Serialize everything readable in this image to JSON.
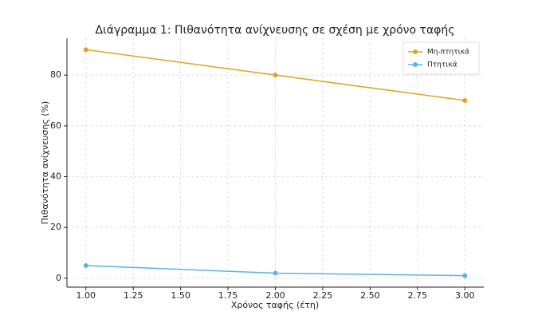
{
  "chart_data": {
    "type": "line",
    "title": "Διάγραμμα 1: Πιθανότητα ανίχνευσης σε σχέση με χρόνο ταφής",
    "xlabel": "Χρόνος ταφής (έτη)",
    "ylabel": "Πιθανότητα ανίχνευσης (%)",
    "x": [
      1,
      2,
      3
    ],
    "series": [
      {
        "name": "Μη-πτητικά",
        "color": "#daa520",
        "values": [
          90,
          80,
          70
        ]
      },
      {
        "name": "Πτητικά",
        "color": "#5ab4e0",
        "values": [
          5,
          2,
          1
        ]
      }
    ],
    "xlim": [
      0.9,
      3.1
    ],
    "xticks": [
      {
        "value": 1,
        "label": "1.00"
      },
      {
        "value": 1.25,
        "label": "1.25"
      },
      {
        "value": 1.5,
        "label": "1.50"
      },
      {
        "value": 1.75,
        "label": "1.75"
      },
      {
        "value": 2,
        "label": "2.00"
      },
      {
        "value": 2.25,
        "label": "2.25"
      },
      {
        "value": 2.5,
        "label": "2.50"
      },
      {
        "value": 2.75,
        "label": "2.75"
      },
      {
        "value": 3,
        "label": "3.00"
      }
    ],
    "ylim": [
      -3.5,
      94.5
    ],
    "yticks": [
      0,
      20,
      40,
      60,
      80
    ],
    "grid": true,
    "legend": "upper right"
  }
}
